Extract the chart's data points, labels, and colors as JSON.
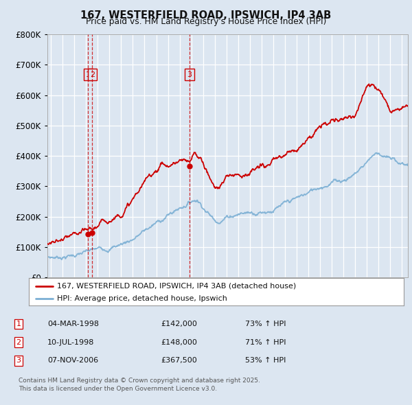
{
  "title": "167, WESTERFIELD ROAD, IPSWICH, IP4 3AB",
  "subtitle": "Price paid vs. HM Land Registry's House Price Index (HPI)",
  "ylim": [
    0,
    800000
  ],
  "yticks": [
    0,
    100000,
    200000,
    300000,
    400000,
    500000,
    600000,
    700000,
    800000
  ],
  "xlim_start": 1994.7,
  "xlim_end": 2025.5,
  "background_color": "#dce6f1",
  "plot_bg_color": "#dce6f1",
  "grid_color": "#ffffff",
  "line_color_property": "#cc0000",
  "line_color_hpi": "#7bafd4",
  "transactions": [
    {
      "num": 1,
      "date": "04-MAR-1998",
      "price": 142000,
      "pct": "73%",
      "year": 1998.17
    },
    {
      "num": 2,
      "date": "10-JUL-1998",
      "price": 148000,
      "pct": "71%",
      "year": 1998.53
    },
    {
      "num": 3,
      "date": "07-NOV-2006",
      "price": 367500,
      "pct": "53%",
      "year": 2006.85
    }
  ],
  "legend_label_property": "167, WESTERFIELD ROAD, IPSWICH, IP4 3AB (detached house)",
  "legend_label_hpi": "HPI: Average price, detached house, Ipswich",
  "footer1": "Contains HM Land Registry data © Crown copyright and database right 2025.",
  "footer2": "This data is licensed under the Open Government Licence v3.0.",
  "hpi_anchors_x": [
    1994.7,
    1995.5,
    1996,
    1997,
    1998,
    1999,
    2000,
    2001,
    2002,
    2003,
    2004,
    2005,
    2006,
    2007,
    2007.5,
    2008,
    2009,
    2009.5,
    2010,
    2011,
    2012,
    2013,
    2014,
    2015,
    2016,
    2017,
    2018,
    2019,
    2020,
    2021,
    2022,
    2022.5,
    2023,
    2023.5,
    2024,
    2025,
    2025.5
  ],
  "hpi_anchors_y": [
    65000,
    67000,
    70000,
    76000,
    82000,
    90000,
    100000,
    112000,
    130000,
    155000,
    178000,
    205000,
    230000,
    255000,
    262000,
    240000,
    192000,
    195000,
    205000,
    215000,
    218000,
    222000,
    228000,
    238000,
    255000,
    275000,
    300000,
    318000,
    325000,
    345000,
    385000,
    408000,
    415000,
    405000,
    390000,
    375000,
    375000
  ],
  "prop_anchors_x": [
    1994.7,
    1995.5,
    1996,
    1997,
    1998.0,
    1998.17,
    1998.53,
    1999,
    2000,
    2001,
    2002,
    2003,
    2004,
    2004.5,
    2005,
    2006,
    2006.85,
    2007.3,
    2008,
    2009,
    2009.5,
    2010,
    2011,
    2012,
    2013,
    2014,
    2015,
    2016,
    2017,
    2018,
    2019,
    2020,
    2021,
    2022,
    2022.5,
    2023,
    2023.5,
    2024,
    2025,
    2025.5
  ],
  "prop_anchors_y": [
    112000,
    116000,
    120000,
    128000,
    138000,
    142000,
    148000,
    162000,
    188000,
    218000,
    258000,
    310000,
    358000,
    380000,
    368000,
    385000,
    367500,
    402000,
    378000,
    295000,
    305000,
    330000,
    348000,
    352000,
    360000,
    372000,
    395000,
    428000,
    468000,
    498000,
    510000,
    520000,
    548000,
    625000,
    640000,
    632000,
    600000,
    565000,
    570000,
    578000
  ]
}
